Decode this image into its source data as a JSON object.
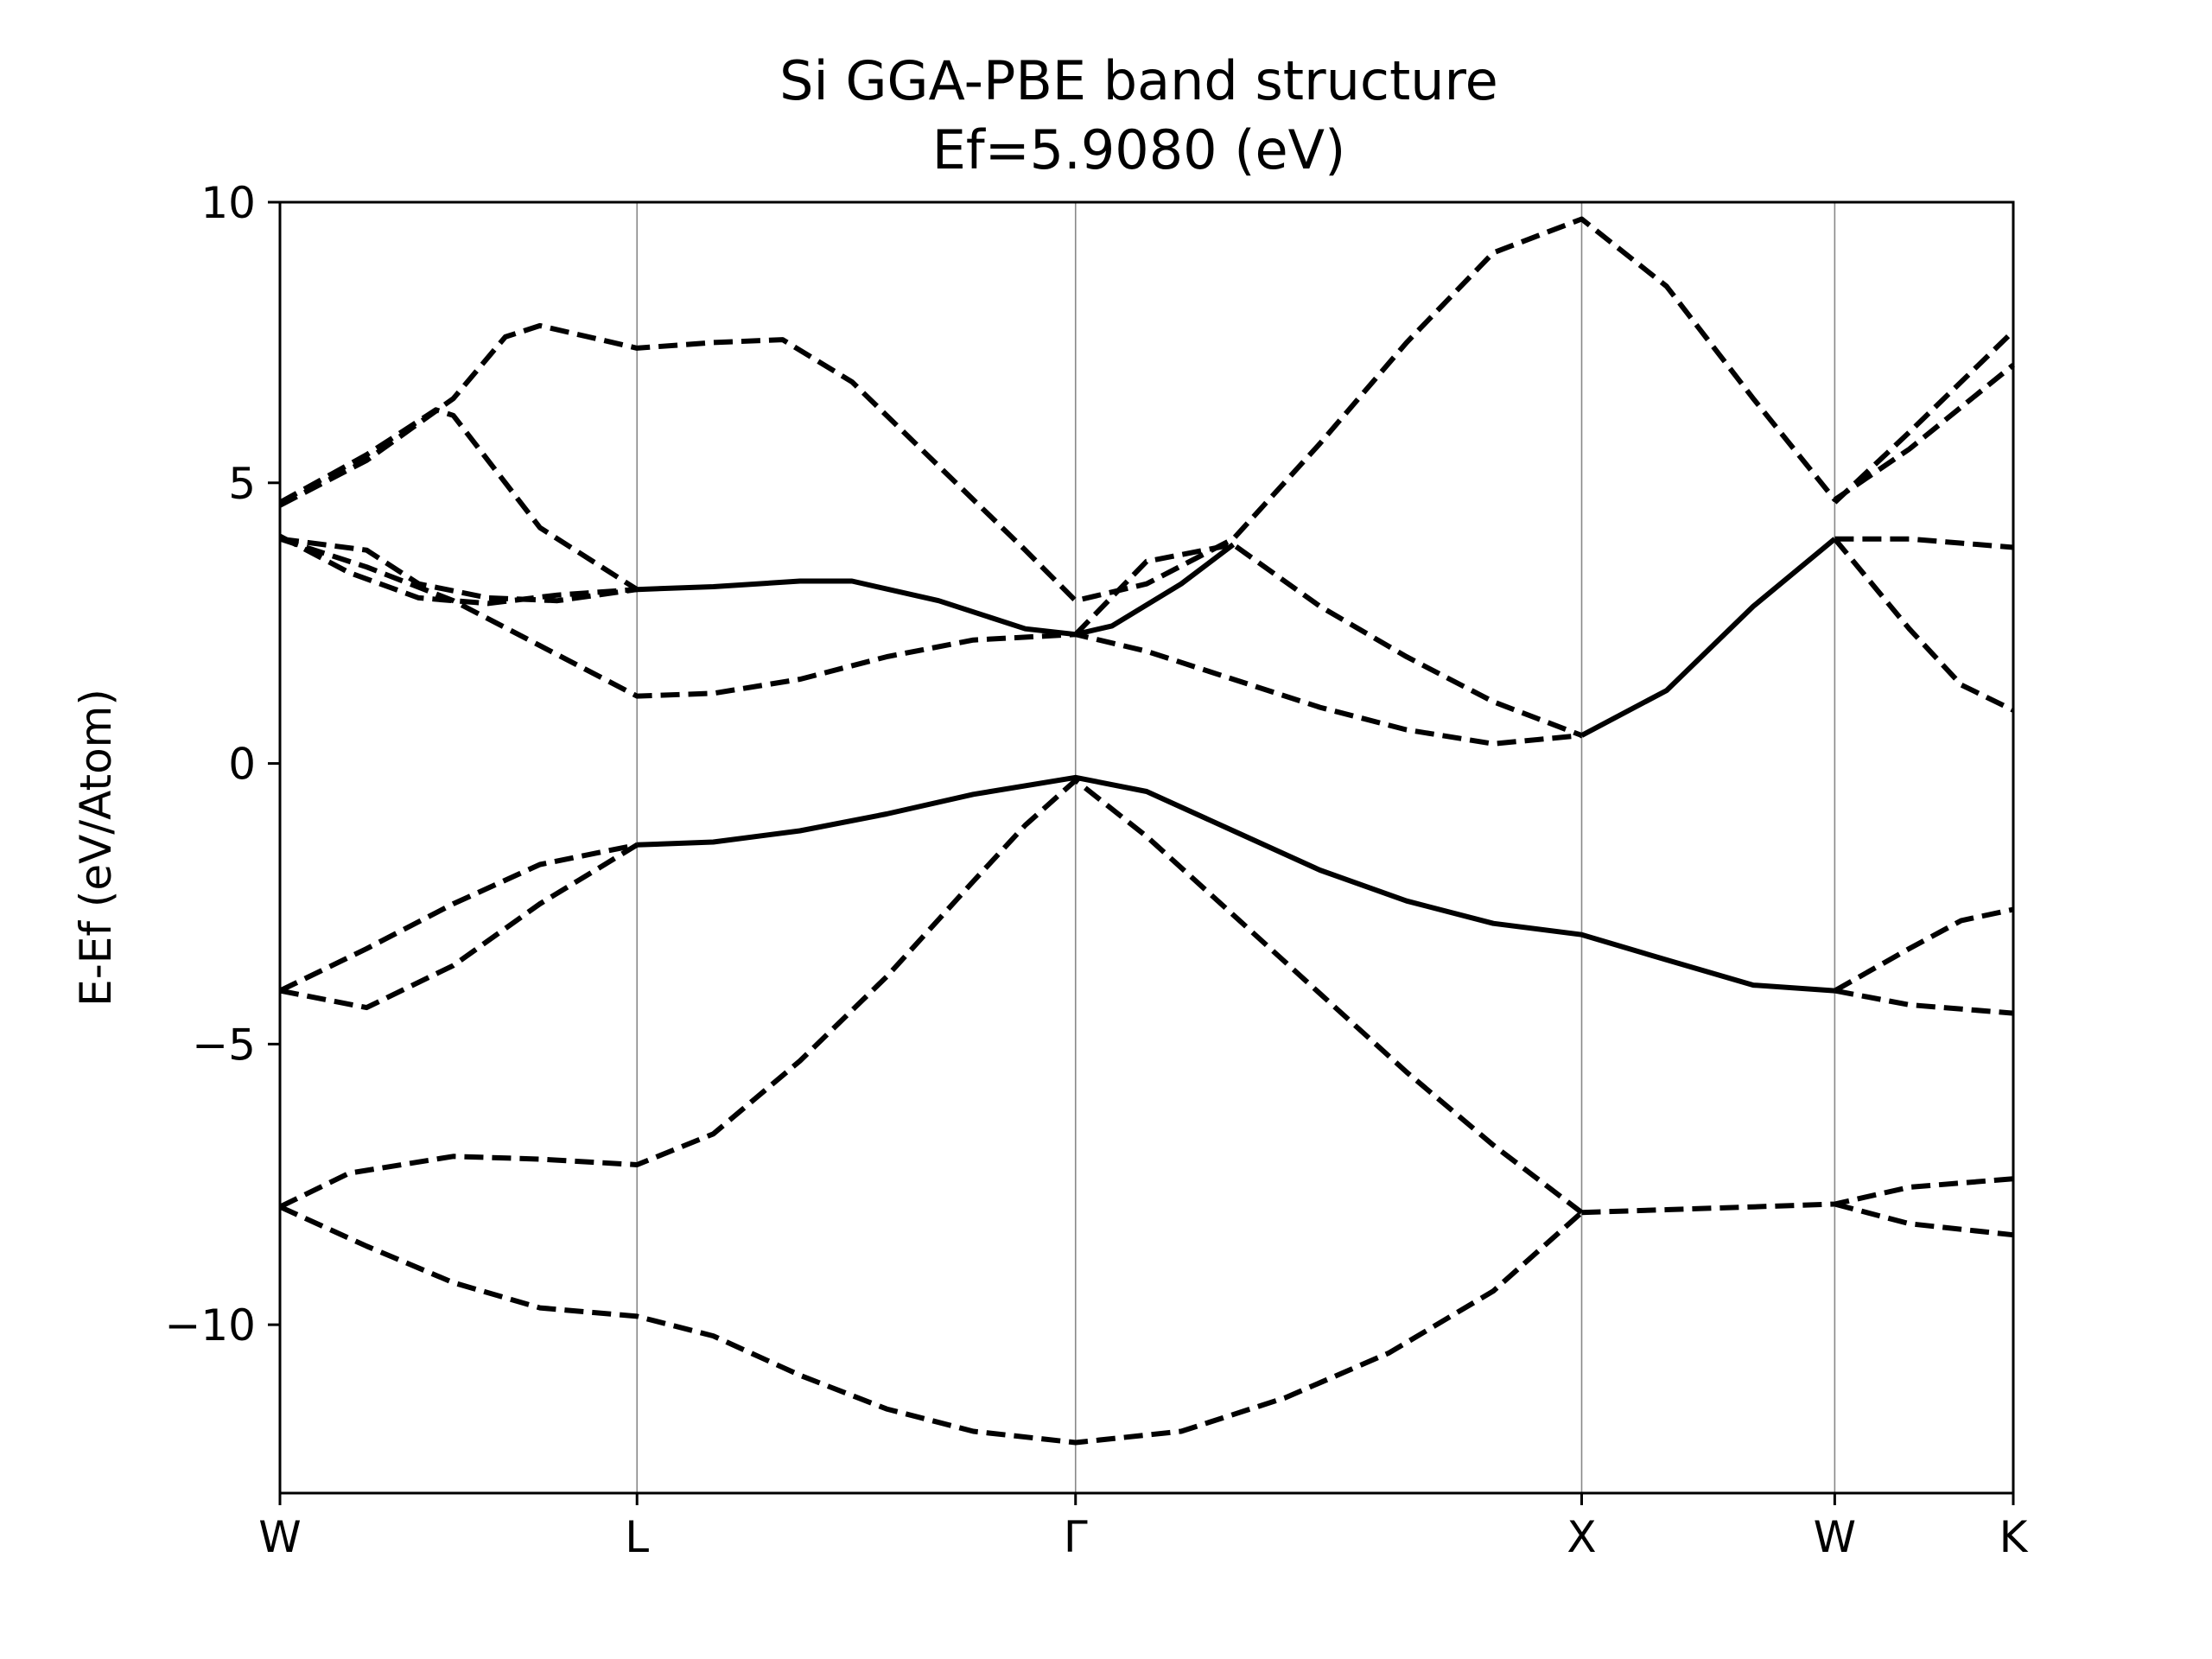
{
  "chart_data": {
    "type": "line",
    "title": "Si GGA-PBE band structure",
    "subtitle": "Ef=5.9080 (eV)",
    "xlabel": "",
    "ylabel": "E-Ef (eV/Atom)",
    "ylim": [
      -13.0,
      10.0
    ],
    "xlim": [
      0,
      1
    ],
    "grid": "vertical lines at high-symmetry points",
    "line_color": "#000000",
    "vline_color": "#888888",
    "high_symmetry_points": [
      {
        "label": "W",
        "x": 0.0
      },
      {
        "label": "L",
        "x": 0.206
      },
      {
        "label": "Γ",
        "x": 0.459
      },
      {
        "label": "X",
        "x": 0.751
      },
      {
        "label": "W",
        "x": 0.897
      },
      {
        "label": "K",
        "x": 1.0
      }
    ],
    "y_ticks": [
      {
        "value": 10,
        "label": "10"
      },
      {
        "value": 5,
        "label": "5"
      },
      {
        "value": 0,
        "label": "0"
      },
      {
        "value": -5,
        "label": "−5"
      },
      {
        "value": -10,
        "label": "−10"
      }
    ],
    "series": [
      {
        "style": "dashed",
        "points": [
          [
            0.0,
            -7.9
          ],
          [
            0.05,
            -8.6
          ],
          [
            0.1,
            -9.25
          ],
          [
            0.15,
            -9.7
          ],
          [
            0.206,
            -9.85
          ],
          [
            0.25,
            -10.2
          ],
          [
            0.3,
            -10.9
          ],
          [
            0.35,
            -11.5
          ],
          [
            0.4,
            -11.9
          ],
          [
            0.459,
            -12.1
          ],
          [
            0.52,
            -11.9
          ],
          [
            0.58,
            -11.3
          ],
          [
            0.64,
            -10.5
          ],
          [
            0.7,
            -9.4
          ],
          [
            0.751,
            -8.0
          ]
        ]
      },
      {
        "style": "dashed",
        "points": [
          [
            0.0,
            -7.9
          ],
          [
            0.04,
            -7.3
          ],
          [
            0.1,
            -7.0
          ],
          [
            0.15,
            -7.05
          ],
          [
            0.206,
            -7.15
          ],
          [
            0.25,
            -6.6
          ],
          [
            0.3,
            -5.3
          ],
          [
            0.35,
            -3.8
          ],
          [
            0.4,
            -2.1
          ],
          [
            0.43,
            -1.1
          ],
          [
            0.459,
            -0.3
          ],
          [
            0.5,
            -1.3
          ],
          [
            0.55,
            -2.7
          ],
          [
            0.6,
            -4.1
          ],
          [
            0.65,
            -5.5
          ],
          [
            0.7,
            -6.8
          ],
          [
            0.751,
            -8.0
          ]
        ]
      },
      {
        "style": "dashed",
        "points": [
          [
            0.751,
            -8.0
          ],
          [
            0.8,
            -7.95
          ],
          [
            0.85,
            -7.9
          ],
          [
            0.897,
            -7.85
          ],
          [
            0.94,
            -7.55
          ],
          [
            1.0,
            -7.4
          ]
        ]
      },
      {
        "style": "dashed",
        "points": [
          [
            0.897,
            -7.85
          ],
          [
            0.94,
            -8.2
          ],
          [
            1.0,
            -8.4
          ]
        ]
      },
      {
        "style": "dashed",
        "points": [
          [
            0.0,
            -4.05
          ],
          [
            0.05,
            -4.35
          ],
          [
            0.1,
            -3.6
          ],
          [
            0.15,
            -2.5
          ],
          [
            0.206,
            -1.45
          ]
        ]
      },
      {
        "style": "dashed",
        "points": [
          [
            0.0,
            -4.05
          ],
          [
            0.05,
            -3.3
          ],
          [
            0.1,
            -2.5
          ],
          [
            0.15,
            -1.8
          ],
          [
            0.206,
            -1.45
          ]
        ]
      },
      {
        "style": "solid",
        "points": [
          [
            0.206,
            -1.45
          ],
          [
            0.25,
            -1.4
          ],
          [
            0.3,
            -1.2
          ],
          [
            0.35,
            -0.9
          ],
          [
            0.4,
            -0.55
          ],
          [
            0.459,
            -0.25
          ],
          [
            0.5,
            -0.5
          ],
          [
            0.55,
            -1.2
          ],
          [
            0.6,
            -1.9
          ],
          [
            0.65,
            -2.45
          ],
          [
            0.7,
            -2.85
          ],
          [
            0.751,
            -3.05
          ],
          [
            0.8,
            -3.5
          ],
          [
            0.85,
            -3.95
          ],
          [
            0.897,
            -4.05
          ]
        ]
      },
      {
        "style": "dashed",
        "points": [
          [
            0.897,
            -4.05
          ],
          [
            0.94,
            -3.3
          ],
          [
            0.97,
            -2.8
          ],
          [
            1.0,
            -2.6
          ]
        ]
      },
      {
        "style": "dashed",
        "points": [
          [
            0.897,
            -4.05
          ],
          [
            0.94,
            -4.3
          ],
          [
            1.0,
            -4.45
          ]
        ]
      },
      {
        "style": "dashed",
        "points": [
          [
            0.0,
            4.0
          ],
          [
            0.05,
            3.5
          ],
          [
            0.1,
            2.9
          ],
          [
            0.15,
            2.1
          ],
          [
            0.206,
            1.2
          ],
          [
            0.25,
            1.25
          ],
          [
            0.3,
            1.5
          ],
          [
            0.35,
            1.9
          ],
          [
            0.4,
            2.2
          ],
          [
            0.459,
            2.3
          ],
          [
            0.5,
            2.0
          ],
          [
            0.55,
            1.5
          ],
          [
            0.6,
            1.0
          ],
          [
            0.65,
            0.6
          ],
          [
            0.7,
            0.35
          ],
          [
            0.751,
            0.5
          ]
        ]
      },
      {
        "style": "dashed",
        "points": [
          [
            0.0,
            4.05
          ],
          [
            0.04,
            3.4
          ],
          [
            0.08,
            2.95
          ],
          [
            0.12,
            2.85
          ],
          [
            0.16,
            3.0
          ],
          [
            0.206,
            3.1
          ]
        ]
      },
      {
        "style": "solid",
        "points": [
          [
            0.206,
            3.1
          ],
          [
            0.25,
            3.15
          ],
          [
            0.3,
            3.25
          ],
          [
            0.33,
            3.25
          ],
          [
            0.38,
            2.9
          ],
          [
            0.43,
            2.4
          ],
          [
            0.459,
            2.3
          ],
          [
            0.48,
            2.45
          ],
          [
            0.52,
            3.2
          ],
          [
            0.55,
            3.9
          ]
        ]
      },
      {
        "style": "dashed",
        "points": [
          [
            0.0,
            4.0
          ],
          [
            0.05,
            3.8
          ],
          [
            0.08,
            3.2
          ],
          [
            0.12,
            2.95
          ],
          [
            0.16,
            2.9
          ],
          [
            0.206,
            3.1
          ]
        ]
      },
      {
        "style": "dashed",
        "points": [
          [
            0.459,
            2.3
          ],
          [
            0.5,
            3.6
          ],
          [
            0.55,
            3.9
          ],
          [
            0.6,
            2.8
          ],
          [
            0.65,
            1.9
          ],
          [
            0.7,
            1.1
          ],
          [
            0.751,
            0.5
          ]
        ]
      },
      {
        "style": "solid",
        "points": [
          [
            0.751,
            0.5
          ],
          [
            0.8,
            1.3
          ],
          [
            0.85,
            2.8
          ],
          [
            0.897,
            4.0
          ]
        ]
      },
      {
        "style": "dashed",
        "points": [
          [
            0.897,
            4.0
          ],
          [
            0.94,
            4.0
          ],
          [
            1.0,
            3.85
          ]
        ]
      },
      {
        "style": "dashed",
        "points": [
          [
            0.897,
            4.0
          ],
          [
            0.94,
            2.4
          ],
          [
            0.97,
            1.4
          ],
          [
            1.0,
            0.95
          ]
        ]
      },
      {
        "style": "dashed",
        "points": [
          [
            0.0,
            4.65
          ],
          [
            0.05,
            5.5
          ],
          [
            0.09,
            6.3
          ],
          [
            0.1,
            6.2
          ],
          [
            0.15,
            4.2
          ],
          [
            0.206,
            3.1
          ]
        ]
      },
      {
        "style": "dashed",
        "points": [
          [
            0.0,
            4.6
          ],
          [
            0.05,
            5.4
          ],
          [
            0.1,
            6.5
          ],
          [
            0.13,
            7.6
          ],
          [
            0.15,
            7.8
          ],
          [
            0.206,
            7.4
          ],
          [
            0.25,
            7.5
          ],
          [
            0.29,
            7.55
          ],
          [
            0.33,
            6.8
          ],
          [
            0.38,
            5.3
          ],
          [
            0.43,
            3.8
          ],
          [
            0.459,
            2.9
          ],
          [
            0.5,
            3.2
          ],
          [
            0.55,
            4.0
          ],
          [
            0.6,
            5.7
          ],
          [
            0.65,
            7.5
          ],
          [
            0.7,
            9.1
          ],
          [
            0.751,
            9.7
          ],
          [
            0.8,
            8.5
          ],
          [
            0.85,
            6.5
          ],
          [
            0.897,
            4.7
          ],
          [
            0.94,
            5.6
          ],
          [
            1.0,
            7.1
          ]
        ]
      },
      {
        "style": "dashed",
        "points": [
          [
            0.897,
            4.65
          ],
          [
            0.94,
            5.9
          ],
          [
            1.0,
            7.7
          ]
        ]
      }
    ]
  }
}
